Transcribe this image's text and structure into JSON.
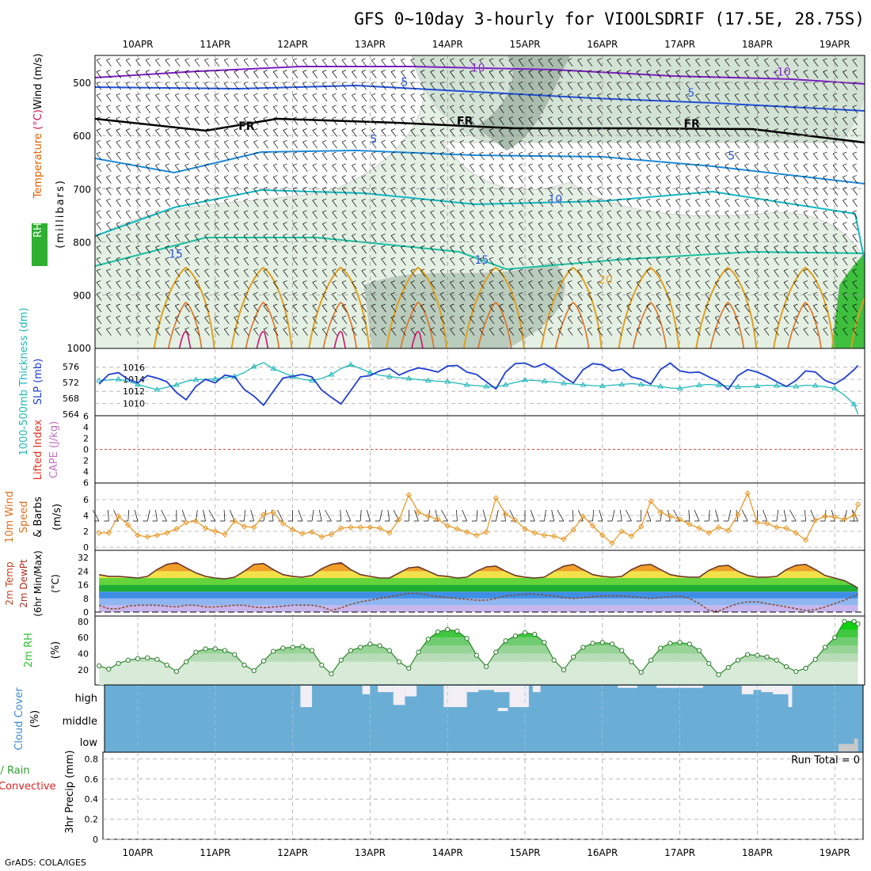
{
  "title": "GFS 0~10day 3-hourly for VIOOLSDRIF (17.5E, 28.75S)",
  "footer": "GrADS: COLA/IGES",
  "colors": {
    "temp_cold": "#7b1fc0",
    "temp_blue": "#2050d8",
    "temp_lightblue": "#1a8ad8",
    "temp_cyan": "#10b8c0",
    "temp_teal": "#18c0a0",
    "temp_orange": "#e0a020",
    "slp": "#1f3fd0",
    "thickness": "#20b8b8",
    "wind_speed": "#e89a2a",
    "tmax_fill": "#e05010",
    "dewpt": "#8b4a2a",
    "rh2m": "#30c030",
    "cloud": "#6aaed6",
    "cape_zero": "#e04040",
    "rain": "#30a030",
    "convective": "#e02020"
  },
  "chart_data": [
    {
      "panel": "upper_air",
      "type": "heatmap",
      "x_tick_labels": [
        "10APR",
        "11APR",
        "12APR",
        "13APR",
        "14APR",
        "15APR",
        "16APR",
        "17APR",
        "18APR",
        "19APR"
      ],
      "y_label_parts": [
        "RH (%)",
        "Temperature",
        "(°C)",
        "Wind (m/s)",
        "(millibars)"
      ],
      "y_ticks": [
        500,
        600,
        700,
        800,
        900,
        1000
      ],
      "ylim": [
        1000,
        450
      ],
      "contour_labels": [
        {
          "text": "-10",
          "x": 4.25,
          "p": 480
        },
        {
          "text": "-10",
          "x": 8.2,
          "p": 487
        },
        {
          "text": "5",
          "x": 3.4,
          "p": 507
        },
        {
          "text": "5",
          "x": 7.1,
          "p": 527
        },
        {
          "text": "FR",
          "x": 1.3,
          "p": 589
        },
        {
          "text": "FR",
          "x": 4.12,
          "p": 580
        },
        {
          "text": "FR",
          "x": 7.05,
          "p": 585
        },
        {
          "text": "5",
          "x": 3.0,
          "p": 614
        },
        {
          "text": "5",
          "x": 7.62,
          "p": 645
        },
        {
          "text": "10",
          "x": 5.3,
          "p": 727
        },
        {
          "text": "15",
          "x": 0.4,
          "p": 830
        },
        {
          "text": "15",
          "x": 4.35,
          "p": 841
        },
        {
          "text": "20",
          "x": 5.95,
          "p": 878
        }
      ]
    },
    {
      "panel": "slp_thickness",
      "type": "line",
      "left_label": "1000-500mb Thickness (dm)",
      "right_label": "SLP (mb)",
      "thickness_ticks": [
        564,
        568,
        572,
        576
      ],
      "slp_ticks": [
        1010,
        1012,
        1014,
        1016
      ],
      "x_days": [
        -0.5,
        -0.375,
        -0.25,
        -0.125,
        0,
        0.125,
        0.25,
        0.375,
        0.5,
        0.625,
        0.75,
        0.875,
        1,
        1.125,
        1.25,
        1.375,
        1.5,
        1.625,
        1.75,
        1.875,
        2,
        2.125,
        2.25,
        2.375,
        2.5,
        2.625,
        2.75,
        2.875,
        3,
        3.125,
        3.25,
        3.375,
        3.5,
        3.625,
        3.75,
        3.875,
        4,
        4.125,
        4.25,
        4.375,
        4.5,
        4.625,
        4.75,
        4.875,
        5,
        5.125,
        5.25,
        5.375,
        5.5,
        5.625,
        5.75,
        5.875,
        6,
        6.125,
        6.25,
        6.375,
        6.5,
        6.625,
        6.75,
        6.875,
        7,
        7.125,
        7.25,
        7.375,
        7.5,
        7.625,
        7.75,
        7.875,
        8,
        8.125,
        8.25,
        8.375,
        8.5,
        8.625,
        8.75,
        8.875,
        9,
        9.125,
        9.25,
        9.3
      ],
      "slp": [
        1013.2,
        1014.8,
        1015.1,
        1014,
        1013.4,
        1014.6,
        1014.2,
        1013.6,
        1011.8,
        1010.6,
        1012.8,
        1014,
        1013.4,
        1014.7,
        1014.4,
        1012.3,
        1011.2,
        1009.7,
        1012,
        1014.2,
        1014.5,
        1014.8,
        1014.4,
        1012.2,
        1011,
        1009.9,
        1012.1,
        1014.4,
        1014.6,
        1015.4,
        1015.8,
        1014.7,
        1015.4,
        1015.9,
        1015.6,
        1015.2,
        1016.2,
        1016.3,
        1015.2,
        1014.8,
        1013.6,
        1012.4,
        1015.2,
        1016.6,
        1016.7,
        1016,
        1016.6,
        1015.6,
        1014.4,
        1013.4,
        1015.6,
        1016.6,
        1016.4,
        1015.4,
        1015.7,
        1014.4,
        1014,
        1013.2,
        1015.6,
        1016.7,
        1015.4,
        1015.1,
        1015.2,
        1014.4,
        1013.6,
        1012.3,
        1014.6,
        1015.6,
        1015.2,
        1014.5,
        1013.6,
        1012.8,
        1013.8,
        1015.4,
        1015.2,
        1013.8,
        1013.2,
        1014.2,
        1015.6,
        1016.3
      ],
      "thickness": [
        572.5,
        572.6,
        572.8,
        572.3,
        571.5,
        570.8,
        570.2,
        570.8,
        571.4,
        572.3,
        572.7,
        572.8,
        572.9,
        573.2,
        573.5,
        574.5,
        576,
        577,
        575.5,
        574.5,
        573.5,
        572.8,
        572.5,
        573,
        574,
        575.5,
        576.5,
        575.5,
        574.5,
        573.8,
        573.5,
        573.2,
        573,
        572.7,
        572.5,
        572.3,
        572.2,
        571.8,
        571.4,
        571.2,
        571,
        570.8,
        571.4,
        572,
        572.6,
        572.5,
        572.3,
        572.1,
        571.8,
        571.6,
        571.4,
        571.2,
        571.1,
        571.3,
        571.5,
        571.7,
        571.5,
        571.2,
        571,
        570.6,
        570.5,
        570.9,
        571.3,
        571.5,
        571.3,
        571.1,
        570.9,
        570.9,
        571.1,
        571.3,
        571.2,
        571,
        571,
        571.3,
        571.2,
        570.9,
        570.5,
        568.8,
        566.5,
        564
      ]
    },
    {
      "panel": "stability",
      "type": "line",
      "left_label": "Lifted Index",
      "right_label": "CAPE (J/kg)",
      "li_ticks": [
        6,
        4,
        2,
        0,
        -2,
        -4,
        -6
      ],
      "lifted_index": [
        0,
        0,
        0,
        0,
        0,
        0,
        0,
        0,
        0,
        0,
        0
      ],
      "cape": [
        0,
        0,
        0,
        0,
        0,
        0,
        0,
        0,
        0,
        0,
        0
      ]
    },
    {
      "panel": "wind10m",
      "type": "line",
      "label_lines": [
        "10m Wind",
        "Speed",
        "& Barbs"
      ],
      "units": "(m/s)",
      "y_ticks": [
        0,
        2,
        4,
        6
      ],
      "x_days": [
        -0.5,
        -0.375,
        -0.25,
        -0.125,
        0,
        0.125,
        0.25,
        0.375,
        0.5,
        0.625,
        0.75,
        0.875,
        1,
        1.125,
        1.25,
        1.375,
        1.5,
        1.625,
        1.75,
        1.875,
        2,
        2.125,
        2.25,
        2.375,
        2.5,
        2.625,
        2.75,
        2.875,
        3,
        3.125,
        3.25,
        3.375,
        3.5,
        3.625,
        3.75,
        3.875,
        4,
        4.125,
        4.25,
        4.375,
        4.5,
        4.625,
        4.75,
        4.875,
        5,
        5.125,
        5.25,
        5.375,
        5.5,
        5.625,
        5.75,
        5.875,
        6,
        6.125,
        6.25,
        6.375,
        6.5,
        6.625,
        6.75,
        6.875,
        7,
        7.125,
        7.25,
        7.375,
        7.5,
        7.625,
        7.75,
        7.875,
        8,
        8.125,
        8.25,
        8.375,
        8.5,
        8.625,
        8.75,
        8.875,
        9,
        9.125,
        9.25,
        9.3
      ],
      "speed": [
        1.8,
        1.8,
        3.9,
        2.8,
        1.5,
        1.3,
        1.5,
        1.8,
        2.3,
        3.1,
        3.3,
        2.4,
        2,
        1.6,
        3.3,
        2.6,
        2.5,
        4.1,
        4.4,
        3,
        2.2,
        1.7,
        1.9,
        1.3,
        1.6,
        2.4,
        2.5,
        2.5,
        2.5,
        2.4,
        1.8,
        3.5,
        6.6,
        4.4,
        3.9,
        3.5,
        2.7,
        2.3,
        1.9,
        1.5,
        1.9,
        6.2,
        4.2,
        3.4,
        2.3,
        1.8,
        1.5,
        1.4,
        1,
        2.2,
        3.9,
        2.7,
        1.5,
        0.5,
        2,
        1.4,
        2.6,
        5.8,
        4.4,
        3.9,
        3.5,
        2.9,
        2.4,
        1.8,
        2.5,
        2.1,
        4.1,
        6.8,
        3.1,
        3,
        2.5,
        2.4,
        1.8,
        0.9,
        3.4,
        3.9,
        3.8,
        3.5,
        4,
        5.4
      ]
    },
    {
      "panel": "temp2m",
      "type": "area",
      "label_lines": [
        "2m Temp",
        "2m DewPt",
        "(6hr Min/Max)"
      ],
      "units": "(°C)",
      "y_ticks": [
        0,
        8,
        16,
        24,
        32
      ],
      "x_days": [
        -0.5,
        -0.375,
        -0.25,
        -0.125,
        0,
        0.125,
        0.25,
        0.375,
        0.5,
        0.625,
        0.75,
        0.875,
        1,
        1.125,
        1.25,
        1.375,
        1.5,
        1.625,
        1.75,
        1.875,
        2,
        2.125,
        2.25,
        2.375,
        2.5,
        2.625,
        2.75,
        2.875,
        3,
        3.125,
        3.25,
        3.375,
        3.5,
        3.625,
        3.75,
        3.875,
        4,
        4.125,
        4.25,
        4.375,
        4.5,
        4.625,
        4.75,
        4.875,
        5,
        5.125,
        5.25,
        5.375,
        5.5,
        5.625,
        5.75,
        5.875,
        6,
        6.125,
        6.25,
        6.375,
        6.5,
        6.625,
        6.75,
        6.875,
        7,
        7.125,
        7.25,
        7.375,
        7.5,
        7.625,
        7.75,
        7.875,
        8,
        8.125,
        8.25,
        8.375,
        8.5,
        8.625,
        8.75,
        8.875,
        9,
        9.125,
        9.25,
        9.3
      ],
      "temp": [
        22,
        21,
        21,
        20.5,
        20,
        21,
        25,
        28,
        29,
        26,
        23,
        21,
        20,
        19.5,
        20.5,
        24,
        28,
        28.5,
        25,
        22,
        21,
        20.5,
        21.5,
        25.5,
        28,
        29,
        25,
        22,
        21,
        20,
        20,
        23,
        26,
        26.5,
        24,
        21.5,
        21,
        20,
        20.5,
        24,
        26.5,
        27,
        24,
        21.5,
        20.5,
        20,
        20.5,
        24,
        27,
        28,
        25,
        22,
        21,
        20.5,
        21,
        25,
        27.5,
        28,
        25,
        22,
        21,
        20.5,
        20.5,
        24.5,
        27,
        27.5,
        24,
        21.5,
        20.5,
        20.5,
        21,
        25,
        27.5,
        28,
        25,
        21.5,
        20,
        18.5,
        15.5,
        14
      ],
      "dewpt": [
        4,
        2,
        2,
        3.5,
        4,
        4,
        4,
        3.5,
        3,
        4,
        4,
        3,
        3,
        3.5,
        4,
        4,
        3,
        2.5,
        3,
        3.5,
        4,
        4,
        4,
        3,
        1,
        2.5,
        4.5,
        6,
        7,
        8,
        9,
        10,
        11,
        11,
        10,
        9,
        8.5,
        8,
        7.5,
        7,
        7,
        8,
        9.5,
        10,
        10.5,
        10.5,
        10,
        9.5,
        8.5,
        8,
        8.5,
        9,
        9.5,
        9.5,
        9.5,
        9,
        8.5,
        8,
        8.5,
        9,
        9.5,
        8,
        5,
        1,
        0.5,
        3,
        5,
        6,
        6,
        5,
        4,
        3,
        2,
        1,
        1.5,
        3,
        5,
        7,
        9.5,
        10.5
      ]
    },
    {
      "panel": "rh2m",
      "type": "area",
      "label": "2m RH",
      "units": "(%)",
      "y_ticks": [
        20,
        40,
        60,
        80
      ],
      "x_days": [
        -0.5,
        -0.375,
        -0.25,
        -0.125,
        0,
        0.125,
        0.25,
        0.375,
        0.5,
        0.625,
        0.75,
        0.875,
        1,
        1.125,
        1.25,
        1.375,
        1.5,
        1.625,
        1.75,
        1.875,
        2,
        2.125,
        2.25,
        2.375,
        2.5,
        2.625,
        2.75,
        2.875,
        3,
        3.125,
        3.25,
        3.375,
        3.5,
        3.625,
        3.75,
        3.875,
        4,
        4.125,
        4.25,
        4.375,
        4.5,
        4.625,
        4.75,
        4.875,
        5,
        5.125,
        5.25,
        5.375,
        5.5,
        5.625,
        5.75,
        5.875,
        6,
        6.125,
        6.25,
        6.375,
        6.5,
        6.625,
        6.75,
        6.875,
        7,
        7.125,
        7.25,
        7.375,
        7.5,
        7.625,
        7.75,
        7.875,
        8,
        8.125,
        8.25,
        8.375,
        8.5,
        8.625,
        8.75,
        8.875,
        9,
        9.125,
        9.25,
        9.3
      ],
      "rh": [
        25,
        21,
        28,
        32,
        34,
        35,
        33,
        26,
        18,
        30,
        42,
        46,
        46,
        44,
        39,
        26,
        19,
        31,
        43,
        47,
        48,
        49,
        44,
        26,
        15,
        32,
        44,
        48,
        52,
        50,
        44,
        30,
        22,
        42,
        58,
        67,
        70,
        68,
        59,
        38,
        24,
        42,
        56,
        62,
        66,
        64,
        54,
        32,
        20,
        36,
        48,
        53,
        54,
        52,
        44,
        30,
        17,
        32,
        47,
        53,
        54,
        52,
        44,
        28,
        14,
        23,
        32,
        39,
        38,
        36,
        32,
        24,
        18,
        22,
        33,
        48,
        60,
        80,
        80,
        77
      ]
    },
    {
      "panel": "cloud_cover",
      "type": "table",
      "label_lines": [
        "Cloud Cover",
        "(%)"
      ],
      "rows": [
        "high",
        "middle",
        "low"
      ],
      "high_gaps": [
        [
          2.1,
          2.25,
          1
        ],
        [
          2.9,
          3.0,
          0.4
        ],
        [
          3.1,
          3.3,
          0.3
        ],
        [
          3.3,
          3.45,
          0.9
        ],
        [
          3.45,
          3.6,
          0.5
        ],
        [
          3.95,
          4.25,
          1
        ],
        [
          4.25,
          4.4,
          0.3
        ],
        [
          4.4,
          4.6,
          0.2
        ],
        [
          4.6,
          4.8,
          0.3
        ],
        [
          4.8,
          5.05,
          1
        ],
        [
          5.1,
          5.2,
          0.3
        ],
        [
          6.2,
          6.45,
          0.1
        ],
        [
          6.7,
          7.3,
          0.1
        ],
        [
          7.8,
          7.95,
          0.4
        ],
        [
          7.95,
          8.05,
          0.2
        ],
        [
          8.05,
          8.2,
          0.3
        ],
        [
          8.2,
          8.4,
          0.4
        ],
        [
          8.4,
          8.45,
          1
        ]
      ],
      "middle_gaps": [
        [
          4.65,
          4.78,
          0.15
        ]
      ],
      "low_gaps": [
        [
          9.05,
          9.25,
          0.35
        ],
        [
          9.25,
          9.3,
          0.6
        ]
      ]
    },
    {
      "panel": "precip",
      "type": "bar",
      "left_label_parts": [
        "Total / Rain",
        "Convective"
      ],
      "units_label": "3hr Precip (mm)",
      "y_ticks": [
        0,
        0.2,
        0.4,
        0.6,
        0.8
      ],
      "run_total_label": "Run Total = 0",
      "values": []
    }
  ]
}
